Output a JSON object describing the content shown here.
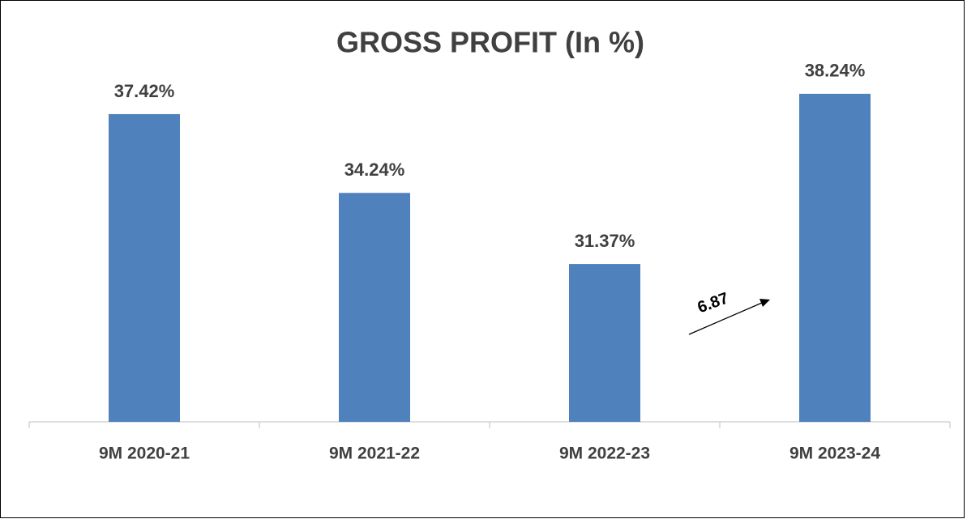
{
  "chart_data": {
    "type": "bar",
    "title": "GROSS PROFIT (In %)",
    "categories": [
      "9M 2020-21",
      "9M 2021-22",
      "9M 2022-23",
      "9M 2023-24"
    ],
    "values": [
      37.42,
      34.24,
      31.37,
      38.24
    ],
    "value_labels": [
      "37.42%",
      "34.24%",
      "31.37%",
      "38.24%"
    ],
    "color": "#4f81bd",
    "ylim": [
      25,
      40
    ],
    "annotation": "6.87"
  }
}
